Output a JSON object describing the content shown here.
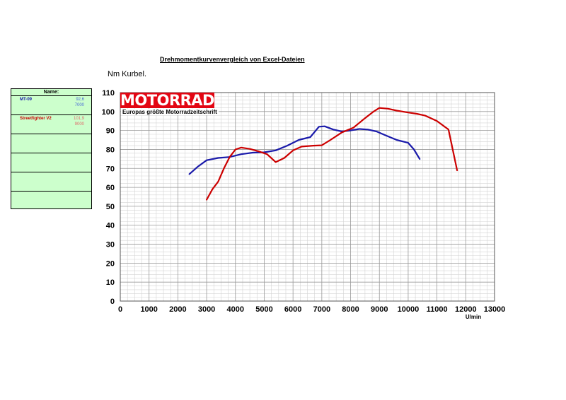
{
  "header": {
    "title": "Drehmomentkurvenvergleich von Excel-Dateien",
    "unit_label": "Nm Kurbel."
  },
  "logo": {
    "text": "MOTORRAD",
    "subtitle": "Europas größte Motorradzeitschrift"
  },
  "legend": {
    "header": "Name:",
    "rows": [
      {
        "name": "MT-09",
        "value1": "92,6",
        "value2": "7000",
        "color": "#1a1aaa",
        "value_color": "#4a6ad8"
      },
      {
        "name": "Streetfighter V2",
        "value1": "101,9",
        "value2": "9000",
        "color": "#cc0000",
        "value_color": "#e06a6a"
      },
      {
        "name": "",
        "value1": "",
        "value2": ""
      },
      {
        "name": "",
        "value1": "",
        "value2": ""
      },
      {
        "name": "",
        "value1": "",
        "value2": ""
      },
      {
        "name": "",
        "value1": "",
        "value2": ""
      }
    ]
  },
  "chart_data": {
    "type": "line",
    "xlabel": "U/min",
    "ylabel": "",
    "xlim": [
      0,
      13000
    ],
    "ylim": [
      0,
      110
    ],
    "x_ticks": [
      0,
      1000,
      2000,
      3000,
      4000,
      5000,
      6000,
      7000,
      8000,
      9000,
      10000,
      11000,
      12000,
      13000
    ],
    "y_ticks": [
      0,
      10,
      20,
      30,
      40,
      50,
      60,
      70,
      80,
      90,
      100,
      110
    ],
    "grid": true,
    "series": [
      {
        "name": "MT-09",
        "color": "#1a1aaa",
        "points": [
          [
            2400,
            67
          ],
          [
            2700,
            71
          ],
          [
            3000,
            74.3
          ],
          [
            3400,
            75.5
          ],
          [
            3800,
            76
          ],
          [
            4200,
            77.5
          ],
          [
            4600,
            78.3
          ],
          [
            5000,
            78.5
          ],
          [
            5400,
            79.5
          ],
          [
            5800,
            82
          ],
          [
            6200,
            85
          ],
          [
            6600,
            86.5
          ],
          [
            6900,
            92
          ],
          [
            7100,
            92.2
          ],
          [
            7400,
            90.5
          ],
          [
            7700,
            89.5
          ],
          [
            8000,
            90
          ],
          [
            8300,
            90.8
          ],
          [
            8600,
            90.5
          ],
          [
            8900,
            89.5
          ],
          [
            9200,
            87.5
          ],
          [
            9600,
            85
          ],
          [
            10000,
            83.5
          ],
          [
            10200,
            80
          ],
          [
            10400,
            75
          ]
        ]
      },
      {
        "name": "Streetfighter V2",
        "color": "#cc0000",
        "points": [
          [
            3000,
            53.5
          ],
          [
            3200,
            59
          ],
          [
            3400,
            63
          ],
          [
            3600,
            70
          ],
          [
            3800,
            76
          ],
          [
            4000,
            80
          ],
          [
            4200,
            81
          ],
          [
            4500,
            80.3
          ],
          [
            4800,
            79
          ],
          [
            5100,
            77.5
          ],
          [
            5400,
            73.3
          ],
          [
            5700,
            75.5
          ],
          [
            6000,
            79.5
          ],
          [
            6300,
            81.5
          ],
          [
            6700,
            82
          ],
          [
            7000,
            82.2
          ],
          [
            7300,
            85
          ],
          [
            7700,
            89
          ],
          [
            8100,
            91.5
          ],
          [
            8500,
            96.5
          ],
          [
            8800,
            100
          ],
          [
            9000,
            101.9
          ],
          [
            9300,
            101.5
          ],
          [
            9600,
            100.5
          ],
          [
            10000,
            99.5
          ],
          [
            10300,
            98.8
          ],
          [
            10600,
            97.8
          ],
          [
            11000,
            95
          ],
          [
            11400,
            90.5
          ],
          [
            11700,
            69
          ]
        ]
      }
    ]
  }
}
